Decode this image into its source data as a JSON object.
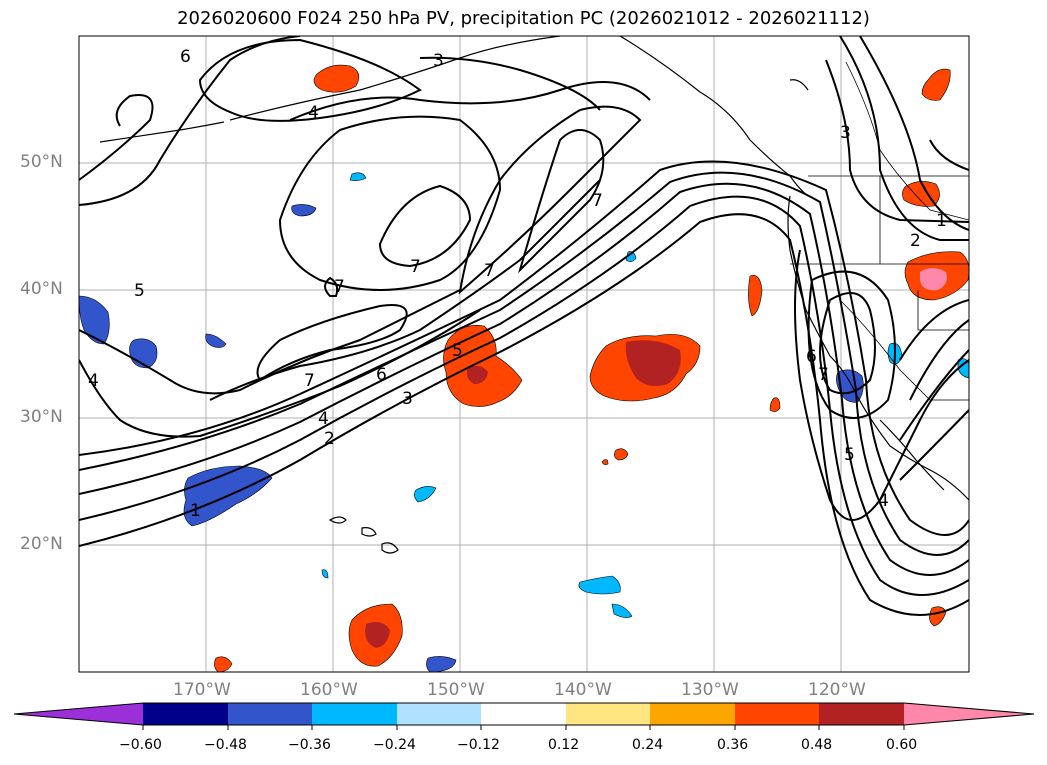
{
  "title": "2026020600 F024 250 hPa PV, precipitation PC (2026021012 - 2026021112)",
  "lat_labels": [
    "50°N",
    "40°N",
    "30°N",
    "20°N"
  ],
  "lon_labels": [
    "170°W",
    "160°W",
    "150°W",
    "140°W",
    "130°W",
    "120°W"
  ],
  "contour_labels": [
    "6",
    "3",
    "4",
    "1",
    "2",
    "3",
    "7",
    "7",
    "7",
    "7",
    "6",
    "7",
    "4",
    "3",
    "2",
    "5",
    "1",
    "4",
    "5",
    "6",
    "5",
    "7",
    "4"
  ],
  "colorbar": {
    "ticks": [
      "−0.60",
      "−0.48",
      "−0.36",
      "−0.24",
      "−0.12",
      "0.12",
      "0.24",
      "0.36",
      "0.48",
      "0.60"
    ],
    "colors": [
      "#9b30d8",
      "#00008b",
      "#3355cc",
      "#00b8ff",
      "#b0e0ff",
      "#ffffff",
      "#ffe680",
      "#ffa500",
      "#ff4500",
      "#b22222",
      "#ff88aa"
    ]
  }
}
